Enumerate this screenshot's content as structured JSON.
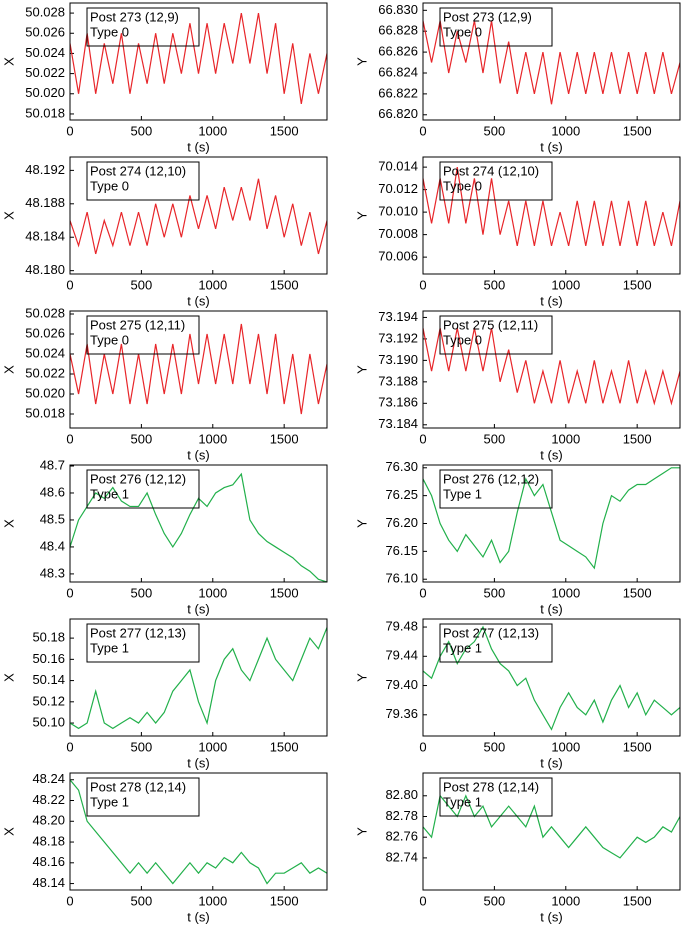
{
  "chart_data": [
    {
      "type": "line",
      "xlabel": "t (s)",
      "ylabel": "X",
      "annotation": [
        "Post 273 (12,9)",
        "Type 0"
      ],
      "x": [
        0,
        60,
        120,
        180,
        240,
        300,
        360,
        420,
        480,
        540,
        600,
        660,
        720,
        780,
        840,
        900,
        960,
        1020,
        1080,
        1140,
        1200,
        1260,
        1320,
        1380,
        1440,
        1500,
        1560,
        1620,
        1680,
        1740,
        1800
      ],
      "series": [
        {
          "color": "#e8262a",
          "values": [
            50.025,
            50.02,
            50.026,
            50.02,
            50.025,
            50.021,
            50.026,
            50.02,
            50.025,
            50.021,
            50.026,
            50.021,
            50.026,
            50.022,
            50.027,
            50.022,
            50.027,
            50.022,
            50.027,
            50.023,
            50.028,
            50.023,
            50.028,
            50.022,
            50.027,
            50.02,
            50.025,
            50.019,
            50.024,
            50.02,
            50.024
          ]
        }
      ],
      "xlim": [
        0,
        1800
      ],
      "xticks": [
        0,
        500,
        1000,
        1500
      ],
      "ylim": [
        50.0174,
        50.029
      ],
      "yticks": [
        50.018,
        {
          "value": 50.02,
          "label": "50.020"
        },
        50.022,
        50.024,
        50.026,
        50.028
      ]
    },
    {
      "type": "line",
      "xlabel": "t (s)",
      "ylabel": "Y",
      "annotation": [
        "Post 273 (12,9)",
        "Type 0"
      ],
      "x": [
        0,
        60,
        120,
        180,
        240,
        300,
        360,
        420,
        480,
        540,
        600,
        660,
        720,
        780,
        840,
        900,
        960,
        1020,
        1080,
        1140,
        1200,
        1260,
        1320,
        1380,
        1440,
        1500,
        1560,
        1620,
        1680,
        1740,
        1800
      ],
      "series": [
        {
          "color": "#e8262a",
          "values": [
            66.829,
            66.825,
            66.829,
            66.824,
            66.828,
            66.825,
            66.829,
            66.824,
            66.829,
            66.823,
            66.827,
            66.822,
            66.826,
            66.822,
            66.826,
            66.821,
            66.826,
            66.822,
            66.826,
            66.822,
            66.826,
            66.822,
            66.826,
            66.822,
            66.826,
            66.822,
            66.826,
            66.822,
            66.826,
            66.822,
            66.825
          ]
        }
      ],
      "xlim": [
        0,
        1800
      ],
      "xticks": [
        0,
        500,
        1000,
        1500
      ],
      "ylim": [
        66.8195,
        66.8307
      ],
      "yticks": [
        {
          "value": 66.82,
          "label": "66.820"
        },
        66.822,
        66.824,
        66.826,
        66.828,
        {
          "value": 66.83,
          "label": "66.830"
        }
      ]
    },
    {
      "type": "line",
      "xlabel": "t (s)",
      "ylabel": "X",
      "annotation": [
        "Post 274 (12,10)",
        "Type 0"
      ],
      "x": [
        0,
        60,
        120,
        180,
        240,
        300,
        360,
        420,
        480,
        540,
        600,
        660,
        720,
        780,
        840,
        900,
        960,
        1020,
        1080,
        1140,
        1200,
        1260,
        1320,
        1380,
        1440,
        1500,
        1560,
        1620,
        1680,
        1740,
        1800
      ],
      "series": [
        {
          "color": "#e8262a",
          "values": [
            48.186,
            48.183,
            48.187,
            48.182,
            48.186,
            48.183,
            48.187,
            48.183,
            48.187,
            48.183,
            48.188,
            48.184,
            48.188,
            48.184,
            48.189,
            48.185,
            48.189,
            48.185,
            48.19,
            48.186,
            48.19,
            48.186,
            48.191,
            48.185,
            48.189,
            48.184,
            48.188,
            48.183,
            48.187,
            48.182,
            48.186
          ]
        }
      ],
      "xlim": [
        0,
        1800
      ],
      "xticks": [
        0,
        500,
        1000,
        1500
      ],
      "ylim": [
        48.1796,
        48.1936
      ],
      "yticks": [
        {
          "value": 48.18,
          "label": "48.180"
        },
        48.184,
        48.188,
        48.192
      ]
    },
    {
      "type": "line",
      "xlabel": "t (s)",
      "ylabel": "Y",
      "annotation": [
        "Post 274 (12,10)",
        "Type 0"
      ],
      "x": [
        0,
        60,
        120,
        180,
        240,
        300,
        360,
        420,
        480,
        540,
        600,
        660,
        720,
        780,
        840,
        900,
        960,
        1020,
        1080,
        1140,
        1200,
        1260,
        1320,
        1380,
        1440,
        1500,
        1560,
        1620,
        1680,
        1740,
        1800
      ],
      "series": [
        {
          "color": "#e8262a",
          "values": [
            70.013,
            70.009,
            70.013,
            70.009,
            70.014,
            70.009,
            70.013,
            70.008,
            70.013,
            70.008,
            70.011,
            70.007,
            70.011,
            70.007,
            70.011,
            70.007,
            70.01,
            70.007,
            70.011,
            70.007,
            70.011,
            70.007,
            70.011,
            70.007,
            70.011,
            70.007,
            70.011,
            70.007,
            70.01,
            70.007,
            70.011
          ]
        }
      ],
      "xlim": [
        0,
        1800
      ],
      "xticks": [
        0,
        500,
        1000,
        1500
      ],
      "ylim": [
        70.0045,
        70.0149
      ],
      "yticks": [
        70.006,
        70.008,
        {
          "value": 70.01,
          "label": "70.010"
        },
        70.012,
        70.014
      ]
    },
    {
      "type": "line",
      "xlabel": "t (s)",
      "ylabel": "X",
      "annotation": [
        "Post 275 (12,11)",
        "Type 0"
      ],
      "x": [
        0,
        60,
        120,
        180,
        240,
        300,
        360,
        420,
        480,
        540,
        600,
        660,
        720,
        780,
        840,
        900,
        960,
        1020,
        1080,
        1140,
        1200,
        1260,
        1320,
        1380,
        1440,
        1500,
        1560,
        1620,
        1680,
        1740,
        1800
      ],
      "series": [
        {
          "color": "#e8262a",
          "values": [
            50.024,
            50.02,
            50.025,
            50.019,
            50.024,
            50.02,
            50.025,
            50.019,
            50.024,
            50.019,
            50.025,
            50.02,
            50.025,
            50.02,
            50.026,
            50.021,
            50.026,
            50.021,
            50.026,
            50.021,
            50.027,
            50.021,
            50.026,
            50.02,
            50.026,
            50.019,
            50.024,
            50.018,
            50.024,
            50.019,
            50.023
          ]
        }
      ],
      "xlim": [
        0,
        1800
      ],
      "xticks": [
        0,
        500,
        1000,
        1500
      ],
      "ylim": [
        50.0166,
        50.0283
      ],
      "yticks": [
        50.018,
        {
          "value": 50.02,
          "label": "50.020"
        },
        50.022,
        50.024,
        50.026,
        50.028
      ]
    },
    {
      "type": "line",
      "xlabel": "t (s)",
      "ylabel": "Y",
      "annotation": [
        "Post 275 (12,11)",
        "Type 0"
      ],
      "x": [
        0,
        60,
        120,
        180,
        240,
        300,
        360,
        420,
        480,
        540,
        600,
        660,
        720,
        780,
        840,
        900,
        960,
        1020,
        1080,
        1140,
        1200,
        1260,
        1320,
        1380,
        1440,
        1500,
        1560,
        1620,
        1680,
        1740,
        1800
      ],
      "series": [
        {
          "color": "#e8262a",
          "values": [
            73.193,
            73.189,
            73.193,
            73.189,
            73.193,
            73.189,
            73.193,
            73.189,
            73.193,
            73.188,
            73.191,
            73.187,
            73.19,
            73.186,
            73.189,
            73.186,
            73.19,
            73.186,
            73.189,
            73.186,
            73.19,
            73.186,
            73.189,
            73.186,
            73.19,
            73.186,
            73.189,
            73.186,
            73.189,
            73.186,
            73.189
          ]
        }
      ],
      "xlim": [
        0,
        1800
      ],
      "xticks": [
        0,
        500,
        1000,
        1500
      ],
      "ylim": [
        73.1837,
        73.1946
      ],
      "yticks": [
        73.184,
        73.186,
        73.188,
        {
          "value": 73.19,
          "label": "73.190"
        },
        73.192,
        73.194
      ]
    },
    {
      "type": "line",
      "xlabel": "t (s)",
      "ylabel": "X",
      "annotation": [
        "Post 276 (12,12)",
        "Type 1"
      ],
      "x": [
        0,
        60,
        120,
        180,
        240,
        300,
        360,
        420,
        480,
        540,
        600,
        660,
        720,
        780,
        840,
        900,
        960,
        1020,
        1080,
        1140,
        1200,
        1260,
        1320,
        1380,
        1440,
        1500,
        1560,
        1620,
        1680,
        1740,
        1800
      ],
      "series": [
        {
          "color": "#22b04b",
          "values": [
            48.4,
            48.5,
            48.55,
            48.6,
            48.58,
            48.62,
            48.57,
            48.55,
            48.55,
            48.6,
            48.52,
            48.45,
            48.4,
            48.45,
            48.52,
            48.58,
            48.55,
            48.6,
            48.62,
            48.63,
            48.67,
            48.5,
            48.45,
            48.42,
            48.4,
            48.38,
            48.36,
            48.33,
            48.31,
            48.28,
            48.27
          ]
        }
      ],
      "xlim": [
        0,
        1800
      ],
      "xticks": [
        0,
        500,
        1000,
        1500
      ],
      "ylim": [
        48.27,
        48.7037
      ],
      "yticks": [
        48.3,
        48.4,
        48.5,
        48.6,
        48.7
      ]
    },
    {
      "type": "line",
      "xlabel": "t (s)",
      "ylabel": "Y",
      "annotation": [
        "Post 276 (12,12)",
        "Type 1"
      ],
      "x": [
        0,
        60,
        120,
        180,
        240,
        300,
        360,
        420,
        480,
        540,
        600,
        660,
        720,
        780,
        840,
        900,
        960,
        1020,
        1080,
        1140,
        1200,
        1260,
        1320,
        1380,
        1440,
        1500,
        1560,
        1620,
        1680,
        1740,
        1800
      ],
      "series": [
        {
          "color": "#22b04b",
          "values": [
            76.28,
            76.25,
            76.2,
            76.17,
            76.15,
            76.18,
            76.16,
            76.14,
            76.17,
            76.13,
            76.15,
            76.22,
            76.28,
            76.25,
            76.27,
            76.22,
            76.17,
            76.16,
            76.15,
            76.14,
            76.12,
            76.2,
            76.25,
            76.24,
            76.26,
            76.27,
            76.27,
            76.28,
            76.29,
            76.3,
            76.3
          ]
        }
      ],
      "xlim": [
        0,
        1800
      ],
      "xticks": [
        0,
        500,
        1000,
        1500
      ],
      "ylim": [
        76.095,
        76.305
      ],
      "yticks": [
        {
          "value": 76.1,
          "label": "76.10"
        },
        76.15,
        {
          "value": 76.2,
          "label": "76.20"
        },
        76.25,
        {
          "value": 76.3,
          "label": "76.30"
        }
      ]
    },
    {
      "type": "line",
      "xlabel": "t (s)",
      "ylabel": "X",
      "annotation": [
        "Post 277 (12,13)",
        "Type 1"
      ],
      "x": [
        0,
        60,
        120,
        180,
        240,
        300,
        360,
        420,
        480,
        540,
        600,
        660,
        720,
        780,
        840,
        900,
        960,
        1020,
        1080,
        1140,
        1200,
        1260,
        1320,
        1380,
        1440,
        1500,
        1560,
        1620,
        1680,
        1740,
        1800
      ],
      "series": [
        {
          "color": "#22b04b",
          "values": [
            50.1,
            50.095,
            50.1,
            50.13,
            50.1,
            50.095,
            50.1,
            50.105,
            50.1,
            50.11,
            50.1,
            50.11,
            50.13,
            50.14,
            50.15,
            50.12,
            50.1,
            50.14,
            50.16,
            50.17,
            50.15,
            50.14,
            50.16,
            50.18,
            50.16,
            50.15,
            50.14,
            50.16,
            50.18,
            50.17,
            50.19
          ]
        }
      ],
      "xlim": [
        0,
        1800
      ],
      "xticks": [
        0,
        500,
        1000,
        1500
      ],
      "ylim": [
        50.0878,
        50.198
      ],
      "yticks": [
        {
          "value": 50.1,
          "label": "50.10"
        },
        50.12,
        50.14,
        50.16,
        50.18
      ]
    },
    {
      "type": "line",
      "xlabel": "t (s)",
      "ylabel": "Y",
      "annotation": [
        "Post 277 (12,13)",
        "Type 1"
      ],
      "x": [
        0,
        60,
        120,
        180,
        240,
        300,
        360,
        420,
        480,
        540,
        600,
        660,
        720,
        780,
        840,
        900,
        960,
        1020,
        1080,
        1140,
        1200,
        1260,
        1320,
        1380,
        1440,
        1500,
        1560,
        1620,
        1680,
        1740,
        1800
      ],
      "series": [
        {
          "color": "#22b04b",
          "values": [
            79.42,
            79.41,
            79.44,
            79.46,
            79.43,
            79.45,
            79.46,
            79.48,
            79.45,
            79.43,
            79.42,
            79.4,
            79.41,
            79.38,
            79.36,
            79.34,
            79.37,
            79.39,
            79.37,
            79.36,
            79.38,
            79.35,
            79.38,
            79.4,
            79.37,
            79.39,
            79.36,
            79.38,
            79.37,
            79.36,
            79.37
          ]
        }
      ],
      "xlim": [
        0,
        1800
      ],
      "xticks": [
        0,
        500,
        1000,
        1500
      ],
      "ylim": [
        79.331,
        79.491
      ],
      "yticks": [
        79.36,
        {
          "value": 79.4,
          "label": "79.40"
        },
        79.44,
        79.48
      ]
    },
    {
      "type": "line",
      "xlabel": "t (s)",
      "ylabel": "X",
      "annotation": [
        "Post 278 (12,14)",
        "Type 1"
      ],
      "x": [
        0,
        60,
        120,
        180,
        240,
        300,
        360,
        420,
        480,
        540,
        600,
        660,
        720,
        780,
        840,
        900,
        960,
        1020,
        1080,
        1140,
        1200,
        1260,
        1320,
        1380,
        1440,
        1500,
        1560,
        1620,
        1680,
        1740,
        1800
      ],
      "series": [
        {
          "color": "#22b04b",
          "values": [
            48.24,
            48.23,
            48.2,
            48.19,
            48.18,
            48.17,
            48.16,
            48.15,
            48.16,
            48.15,
            48.16,
            48.15,
            48.14,
            48.15,
            48.16,
            48.15,
            48.16,
            48.155,
            48.165,
            48.16,
            48.17,
            48.16,
            48.155,
            48.14,
            48.15,
            48.15,
            48.155,
            48.16,
            48.15,
            48.155,
            48.15
          ]
        }
      ],
      "xlim": [
        0,
        1800
      ],
      "xticks": [
        0,
        500,
        1000,
        1500
      ],
      "ylim": [
        48.1338,
        48.2465
      ],
      "yticks": [
        48.14,
        48.16,
        48.18,
        {
          "value": 48.2,
          "label": "48.20"
        },
        48.22,
        48.24
      ]
    },
    {
      "type": "line",
      "xlabel": "t (s)",
      "ylabel": "Y",
      "annotation": [
        "Post 278 (12,14)",
        "Type 1"
      ],
      "x": [
        0,
        60,
        120,
        180,
        240,
        300,
        360,
        420,
        480,
        540,
        600,
        660,
        720,
        780,
        840,
        900,
        960,
        1020,
        1080,
        1140,
        1200,
        1260,
        1320,
        1380,
        1440,
        1500,
        1560,
        1620,
        1680,
        1740,
        1800
      ],
      "series": [
        {
          "color": "#22b04b",
          "values": [
            82.77,
            82.76,
            82.8,
            82.79,
            82.78,
            82.8,
            82.78,
            82.79,
            82.77,
            82.78,
            82.79,
            82.78,
            82.77,
            82.79,
            82.76,
            82.77,
            82.76,
            82.75,
            82.76,
            82.77,
            82.76,
            82.75,
            82.745,
            82.74,
            82.75,
            82.76,
            82.755,
            82.76,
            82.77,
            82.765,
            82.78
          ]
        }
      ],
      "xlim": [
        0,
        1800
      ],
      "xticks": [
        0,
        500,
        1000,
        1500
      ],
      "ylim": [
        82.709,
        82.822
      ],
      "yticks": [
        82.74,
        82.76,
        82.78,
        {
          "value": 82.8,
          "label": "82.80"
        }
      ]
    }
  ]
}
